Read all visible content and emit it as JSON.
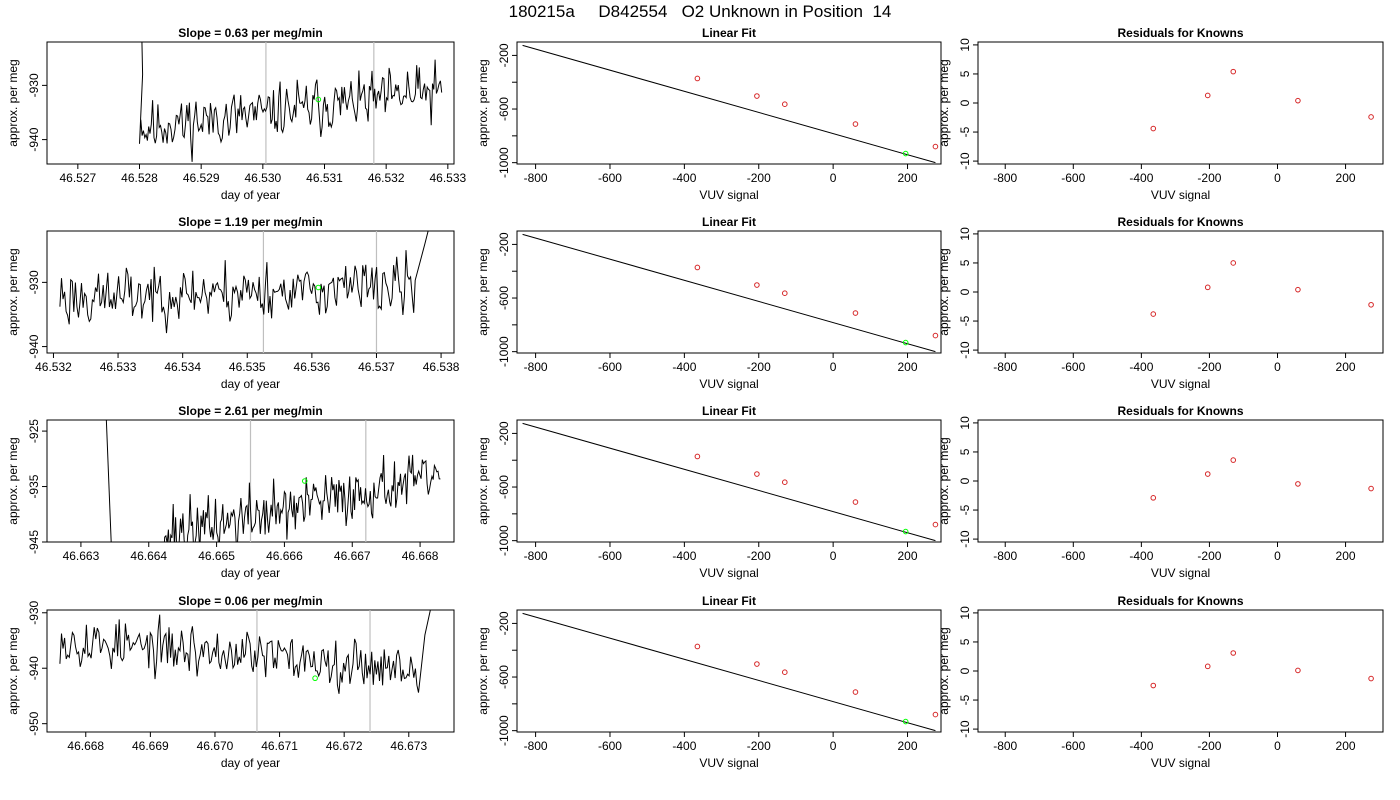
{
  "page_title": "180215a     D842554   O2 Unknown in Position  14",
  "colors": {
    "trace": "#000000",
    "known_point": "#d62728",
    "unknown_point": "#00ff00",
    "vline": "#bfbfbf"
  },
  "chart_data": [
    {
      "type": "line",
      "panel": "time_series",
      "row": 1,
      "title": "Slope =  0.63  per meg/min",
      "xlabel": "day of year",
      "ylabel": "approx. per meg",
      "xlim": [
        46.5265,
        46.5331
      ],
      "ylim": [
        -944.5,
        -922
      ],
      "xticks": [
        46.527,
        46.528,
        46.529,
        46.53,
        46.531,
        46.532,
        46.533
      ],
      "xtick_labels": [
        "46.527",
        "46.528",
        "46.529",
        "46.530",
        "46.531",
        "46.532",
        "46.533"
      ],
      "yticks": [
        -940,
        -930
      ],
      "ytick_labels": [
        "-940",
        "-930"
      ],
      "vlines": [
        46.53005,
        46.5318
      ],
      "series_start": 46.528,
      "series_end": 46.5329,
      "baseline_start": -938,
      "baseline_end": -931,
      "noise_amplitude": 2.2,
      "seed": 11,
      "spike_start": [
        [
          46.528,
          -900
        ],
        [
          46.52805,
          -928
        ]
      ],
      "spike_end": null,
      "unknown_point": [
        46.5309,
        -932.6
      ]
    },
    {
      "type": "scatter",
      "panel": "linear_fit",
      "row": 1,
      "title": "Linear Fit",
      "xlabel": "VUV signal",
      "ylabel": "approx. per meg",
      "xlim": [
        -850,
        290
      ],
      "ylim": [
        -1010,
        -100
      ],
      "xticks": [
        -800,
        -600,
        -400,
        -200,
        0,
        200
      ],
      "xtick_labels": [
        "-800",
        "-600",
        "-400",
        "-200",
        "0",
        "200"
      ],
      "yticks": [
        -200,
        -400,
        -600,
        -800,
        -1000
      ],
      "ytick_labels": [
        "-200",
        "",
        "-600",
        "",
        "-1000"
      ],
      "line": {
        "x": [
          -835,
          275
        ],
        "y": [
          -125,
          -1000
        ]
      },
      "knowns": {
        "x": [
          -365,
          -205,
          -130,
          60,
          275
        ],
        "y": [
          -372,
          -503,
          -564,
          -712,
          -880
        ]
      },
      "unknown": {
        "x": [
          195
        ],
        "y": [
          -932
        ]
      }
    },
    {
      "type": "scatter",
      "panel": "residuals",
      "row": 1,
      "title": "Residuals for Knowns",
      "xlabel": "VUV signal",
      "ylabel": "approx. per meg",
      "xlim": [
        -880,
        310
      ],
      "ylim": [
        -10.5,
        10.5
      ],
      "xticks": [
        -800,
        -600,
        -400,
        -200,
        0,
        200
      ],
      "xtick_labels": [
        "-800",
        "-600",
        "-400",
        "-200",
        "0",
        "200"
      ],
      "yticks": [
        10,
        5,
        0,
        -5,
        -10
      ],
      "ytick_labels": [
        "10",
        "5",
        "0",
        "-5",
        "-10"
      ],
      "x": [
        -365,
        -205,
        -130,
        60,
        275
      ],
      "y": [
        -4.4,
        1.3,
        5.4,
        0.4,
        -2.4
      ]
    },
    {
      "type": "line",
      "panel": "time_series",
      "row": 2,
      "title": "Slope =  1.19  per meg/min",
      "xlabel": "day of year",
      "ylabel": "approx. per meg",
      "xlim": [
        46.5319,
        46.5382
      ],
      "ylim": [
        -941,
        -922
      ],
      "xticks": [
        46.532,
        46.533,
        46.534,
        46.535,
        46.536,
        46.537,
        46.538
      ],
      "xtick_labels": [
        "46.532",
        "46.533",
        "46.534",
        "46.535",
        "46.536",
        "46.537",
        "46.538"
      ],
      "yticks": [
        -940,
        -930
      ],
      "ytick_labels": [
        "-940",
        "-930"
      ],
      "vlines": [
        46.53525,
        46.537
      ],
      "series_start": 46.5321,
      "series_end": 46.5376,
      "baseline_start": -932.5,
      "baseline_end": -930.5,
      "noise_amplitude": 2.0,
      "seed": 23,
      "spike_start": null,
      "spike_end": [
        [
          46.53775,
          -924
        ],
        [
          46.5379,
          -918
        ]
      ],
      "unknown_point": [
        46.5361,
        -930.8
      ]
    },
    {
      "type": "scatter",
      "panel": "linear_fit",
      "row": 2,
      "title": "Linear Fit",
      "xlabel": "VUV signal",
      "ylabel": "approx. per meg",
      "xlim": [
        -850,
        290
      ],
      "ylim": [
        -1010,
        -100
      ],
      "xticks": [
        -800,
        -600,
        -400,
        -200,
        0,
        200
      ],
      "xtick_labels": [
        "-800",
        "-600",
        "-400",
        "-200",
        "0",
        "200"
      ],
      "yticks": [
        -200,
        -400,
        -600,
        -800,
        -1000
      ],
      "ytick_labels": [
        "-200",
        "",
        "-600",
        "",
        "-1000"
      ],
      "line": {
        "x": [
          -835,
          275
        ],
        "y": [
          -125,
          -1000
        ]
      },
      "knowns": {
        "x": [
          -365,
          -205,
          -130,
          60,
          275
        ],
        "y": [
          -372,
          -503,
          -564,
          -712,
          -880
        ]
      },
      "unknown": {
        "x": [
          195
        ],
        "y": [
          -932
        ]
      }
    },
    {
      "type": "scatter",
      "panel": "residuals",
      "row": 2,
      "title": "Residuals for Knowns",
      "xlabel": "VUV signal",
      "ylabel": "approx. per meg",
      "xlim": [
        -880,
        310
      ],
      "ylim": [
        -10.5,
        10.5
      ],
      "xticks": [
        -800,
        -600,
        -400,
        -200,
        0,
        200
      ],
      "xtick_labels": [
        "-800",
        "-600",
        "-400",
        "-200",
        "0",
        "200"
      ],
      "yticks": [
        10,
        5,
        0,
        -5,
        -10
      ],
      "ytick_labels": [
        "10",
        "5",
        "0",
        "-5",
        "-10"
      ],
      "x": [
        -365,
        -205,
        -130,
        60,
        275
      ],
      "y": [
        -3.8,
        0.8,
        5.0,
        0.4,
        -2.2
      ]
    },
    {
      "type": "line",
      "panel": "time_series",
      "row": 3,
      "title": "Slope =  2.61  per meg/min",
      "xlabel": "day of year",
      "ylabel": "approx. per meg",
      "xlim": [
        46.6625,
        46.6685
      ],
      "ylim": [
        -945,
        -923
      ],
      "xticks": [
        46.663,
        46.664,
        46.665,
        46.666,
        46.667,
        46.668
      ],
      "xtick_labels": [
        "46.663",
        "46.664",
        "46.665",
        "46.666",
        "46.667",
        "46.668"
      ],
      "yticks": [
        -945,
        -935,
        -925
      ],
      "ytick_labels": [
        "-945",
        "-935",
        "-925"
      ],
      "vlines": [
        46.6655,
        46.6672
      ],
      "series_start": 46.6642,
      "series_end": 46.6683,
      "baseline_start": -944,
      "baseline_end": -933,
      "noise_amplitude": 2.3,
      "seed": 37,
      "spike_start": [
        [
          46.6633,
          -900
        ],
        [
          46.66345,
          -946
        ]
      ],
      "spike_end": null,
      "unknown_point": [
        46.6663,
        -934.0
      ]
    },
    {
      "type": "scatter",
      "panel": "linear_fit",
      "row": 3,
      "title": "Linear Fit",
      "xlabel": "VUV signal",
      "ylabel": "approx. per meg",
      "xlim": [
        -850,
        290
      ],
      "ylim": [
        -1010,
        -100
      ],
      "xticks": [
        -800,
        -600,
        -400,
        -200,
        0,
        200
      ],
      "xtick_labels": [
        "-800",
        "-600",
        "-400",
        "-200",
        "0",
        "200"
      ],
      "yticks": [
        -200,
        -400,
        -600,
        -800,
        -1000
      ],
      "ytick_labels": [
        "-200",
        "",
        "-600",
        "",
        "-1000"
      ],
      "line": {
        "x": [
          -835,
          275
        ],
        "y": [
          -125,
          -1000
        ]
      },
      "knowns": {
        "x": [
          -365,
          -205,
          -130,
          60,
          275
        ],
        "y": [
          -372,
          -503,
          -564,
          -712,
          -880
        ]
      },
      "unknown": {
        "x": [
          195
        ],
        "y": [
          -932
        ]
      }
    },
    {
      "type": "scatter",
      "panel": "residuals",
      "row": 3,
      "title": "Residuals for Knowns",
      "xlabel": "VUV signal",
      "ylabel": "approx. per meg",
      "xlim": [
        -880,
        310
      ],
      "ylim": [
        -10.5,
        10.5
      ],
      "xticks": [
        -800,
        -600,
        -400,
        -200,
        0,
        200
      ],
      "xtick_labels": [
        "-800",
        "-600",
        "-400",
        "-200",
        "0",
        "200"
      ],
      "yticks": [
        10,
        5,
        0,
        -5,
        -10
      ],
      "ytick_labels": [
        "10",
        "5",
        "0",
        "-5",
        "-10"
      ],
      "x": [
        -365,
        -205,
        -130,
        60,
        275
      ],
      "y": [
        -2.9,
        1.2,
        3.6,
        -0.5,
        -1.3
      ]
    },
    {
      "type": "line",
      "panel": "time_series",
      "row": 4,
      "title": "Slope =  0.06  per meg/min",
      "xlabel": "day of year",
      "ylabel": "approx. per meg",
      "xlim": [
        46.6674,
        46.6737
      ],
      "ylim": [
        -951.5,
        -929.5
      ],
      "xticks": [
        46.668,
        46.669,
        46.67,
        46.671,
        46.672,
        46.673
      ],
      "xtick_labels": [
        "46.668",
        "46.669",
        "46.670",
        "46.671",
        "46.672",
        "46.673"
      ],
      "yticks": [
        -950,
        -940,
        -930
      ],
      "ytick_labels": [
        "-950",
        "-940",
        "-930"
      ],
      "vlines": [
        46.67065,
        46.6724
      ],
      "series_start": 46.6676,
      "series_end": 46.67315,
      "baseline_start": -935,
      "baseline_end": -940,
      "noise_amplitude": 2.0,
      "seed": 53,
      "spike_start": null,
      "spike_end": [
        [
          46.67325,
          -934
        ],
        [
          46.6734,
          -926
        ]
      ],
      "unknown_point": [
        46.67155,
        -941.8
      ]
    },
    {
      "type": "scatter",
      "panel": "linear_fit",
      "row": 4,
      "title": "Linear Fit",
      "xlabel": "VUV signal",
      "ylabel": "approx. per meg",
      "xlim": [
        -850,
        290
      ],
      "ylim": [
        -1010,
        -100
      ],
      "xticks": [
        -800,
        -600,
        -400,
        -200,
        0,
        200
      ],
      "xtick_labels": [
        "-800",
        "-600",
        "-400",
        "-200",
        "0",
        "200"
      ],
      "yticks": [
        -200,
        -400,
        -600,
        -800,
        -1000
      ],
      "ytick_labels": [
        "-200",
        "",
        "-600",
        "",
        "-1000"
      ],
      "line": {
        "x": [
          -835,
          275
        ],
        "y": [
          -125,
          -1000
        ]
      },
      "knowns": {
        "x": [
          -365,
          -205,
          -130,
          60,
          275
        ],
        "y": [
          -372,
          -503,
          -564,
          -712,
          -880
        ]
      },
      "unknown": {
        "x": [
          195
        ],
        "y": [
          -932
        ]
      }
    },
    {
      "type": "scatter",
      "panel": "residuals",
      "row": 4,
      "title": "Residuals for Knowns",
      "xlabel": "VUV signal",
      "ylabel": "approx. per meg",
      "xlim": [
        -880,
        310
      ],
      "ylim": [
        -10.5,
        10.5
      ],
      "xticks": [
        -800,
        -600,
        -400,
        -200,
        0,
        200
      ],
      "xtick_labels": [
        "-800",
        "-600",
        "-400",
        "-200",
        "0",
        "200"
      ],
      "yticks": [
        10,
        5,
        0,
        -5,
        -10
      ],
      "ytick_labels": [
        "10",
        "5",
        "0",
        "-5",
        "-10"
      ],
      "x": [
        -365,
        -205,
        -130,
        60,
        275
      ],
      "y": [
        -2.5,
        0.8,
        3.1,
        0.1,
        -1.3
      ]
    }
  ]
}
